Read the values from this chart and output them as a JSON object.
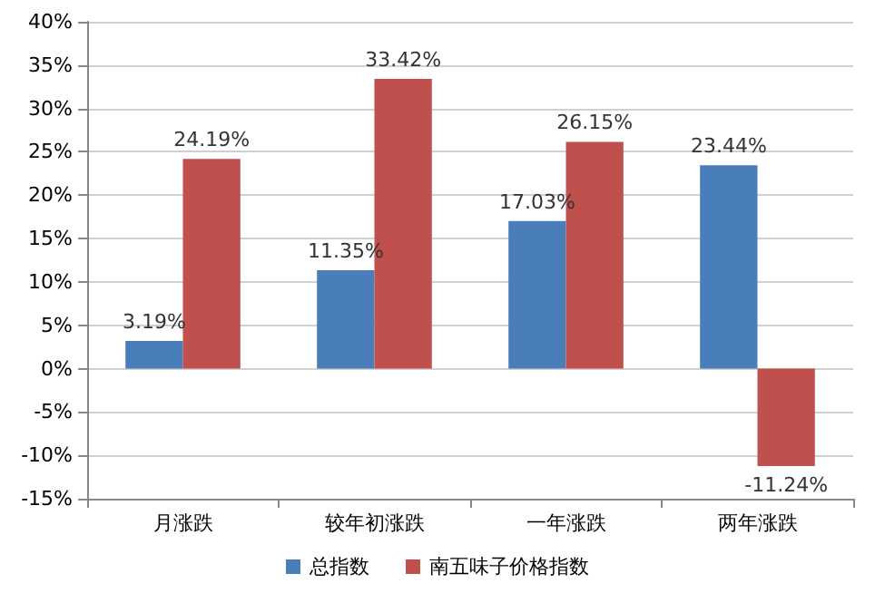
{
  "chart_data": {
    "type": "bar",
    "categories": [
      "月涨跌",
      "较年初涨跌",
      "一年涨跌",
      "两年涨跌"
    ],
    "series": [
      {
        "name": "总指数",
        "color": "#4a7ebb",
        "values": [
          3.19,
          11.35,
          17.03,
          23.44
        ],
        "value_labels": [
          "3.19%",
          "11.35%",
          "17.03%",
          "23.44%"
        ]
      },
      {
        "name": "南五味子价格指数",
        "color": "#c0504d",
        "values": [
          24.19,
          33.42,
          26.15,
          -11.24
        ],
        "value_labels": [
          "24.19%",
          "33.42%",
          "26.15%",
          "-11.24%"
        ]
      }
    ],
    "ylim": [
      -15,
      40
    ],
    "yticks": [
      {
        "value": -15,
        "label": "-15%"
      },
      {
        "value": -10,
        "label": "-10%"
      },
      {
        "value": -5,
        "label": "-5%"
      },
      {
        "value": 0,
        "label": "0%"
      },
      {
        "value": 5,
        "label": "5%"
      },
      {
        "value": 10,
        "label": "10%"
      },
      {
        "value": 15,
        "label": "15%"
      },
      {
        "value": 20,
        "label": "20%"
      },
      {
        "value": 25,
        "label": "25%"
      },
      {
        "value": 30,
        "label": "30%"
      },
      {
        "value": 35,
        "label": "35%"
      },
      {
        "value": 40,
        "label": "40%"
      }
    ],
    "grid": "y",
    "legend": "bottom"
  }
}
